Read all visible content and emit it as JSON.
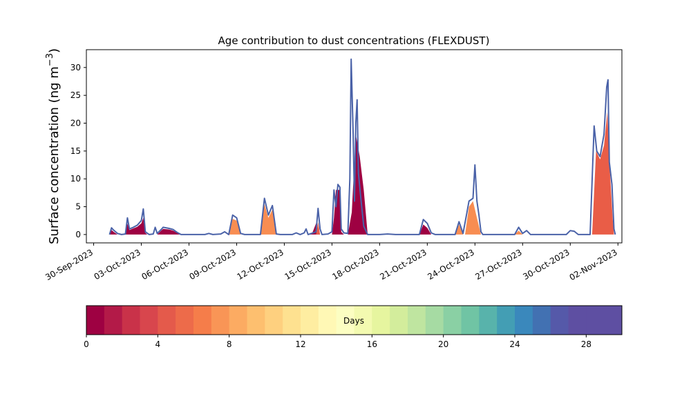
{
  "chart_data": {
    "type": "area",
    "title": "Age contribution to dust concentrations (FLEXDUST)",
    "ylabel_main": "Surface concentration (ng m",
    "ylabel_sup": "−3",
    "ylabel_close": ")",
    "xlabel": "",
    "ylim": [
      -1.5,
      33.2
    ],
    "yticks": [
      0,
      5,
      10,
      15,
      20,
      25,
      30
    ],
    "xlim": [
      "2023-09-29T13:00",
      "2023-11-02T06:00"
    ],
    "xticks": [
      "2023-09-30",
      "2023-10-03",
      "2023-10-06",
      "2023-10-09",
      "2023-10-12",
      "2023-10-15",
      "2023-10-18",
      "2023-10-21",
      "2023-10-24",
      "2023-10-27",
      "2023-10-30",
      "2023-11-02"
    ],
    "xtick_labels": [
      "30-Sep-2023",
      "03-Oct-2023",
      "06-Oct-2023",
      "09-Oct-2023",
      "12-Oct-2023",
      "15-Oct-2023",
      "18-Oct-2023",
      "21-Oct-2023",
      "24-Oct-2023",
      "27-Oct-2023",
      "30-Oct-2023",
      "02-Nov-2023"
    ],
    "line_color": "#4a62a8",
    "series": [
      {
        "age_bin": "0-1 days",
        "color": "#9e0142",
        "points": [
          [
            "2023-10-01T00:00",
            0
          ],
          [
            "2023-10-01T03:00",
            0.8
          ],
          [
            "2023-10-01T06:00",
            0.5
          ],
          [
            "2023-10-01T12:00",
            0
          ],
          [
            "2023-10-02T00:00",
            0
          ],
          [
            "2023-10-02T03:00",
            2.0
          ],
          [
            "2023-10-02T06:00",
            0.8
          ],
          [
            "2023-10-02T12:00",
            1.1
          ],
          [
            "2023-10-02T18:00",
            1.4
          ],
          [
            "2023-10-03T00:00",
            2.0
          ],
          [
            "2023-10-03T03:00",
            3.0
          ],
          [
            "2023-10-03T06:00",
            0.3
          ],
          [
            "2023-10-03T09:00",
            0
          ],
          [
            "2023-10-04T00:00",
            0
          ],
          [
            "2023-10-04T06:00",
            0.7
          ],
          [
            "2023-10-04T09:00",
            1.0
          ],
          [
            "2023-10-04T18:00",
            0.9
          ],
          [
            "2023-10-05T00:00",
            0.7
          ],
          [
            "2023-10-05T06:00",
            0.3
          ],
          [
            "2023-10-05T12:00",
            0
          ],
          [
            "2023-10-13T12:00",
            0
          ],
          [
            "2023-10-13T18:00",
            0.2
          ],
          [
            "2023-10-14T00:00",
            2.0
          ],
          [
            "2023-10-14T03:00",
            0.3
          ],
          [
            "2023-10-14T06:00",
            0
          ],
          [
            "2023-10-15T00:00",
            0
          ],
          [
            "2023-10-15T03:00",
            3.0
          ],
          [
            "2023-10-15T06:00",
            8.0
          ],
          [
            "2023-10-15T12:00",
            8.0
          ],
          [
            "2023-10-15T14:00",
            0.5
          ],
          [
            "2023-10-15T18:00",
            0
          ],
          [
            "2023-10-16T00:00",
            0
          ],
          [
            "2023-10-16T06:00",
            4.0
          ],
          [
            "2023-10-16T12:00",
            18.0
          ],
          [
            "2023-10-16T18:00",
            14.0
          ],
          [
            "2023-10-17T00:00",
            8.0
          ],
          [
            "2023-10-17T06:00",
            0
          ],
          [
            "2023-10-20T12:00",
            0
          ],
          [
            "2023-10-20T18:00",
            1.8
          ],
          [
            "2023-10-21T00:00",
            1.2
          ],
          [
            "2023-10-21T06:00",
            0
          ]
        ]
      },
      {
        "age_bin": "4-6 days",
        "color": "#e95d47",
        "points": [
          [
            "2023-10-14T00:00",
            0
          ],
          [
            "2023-10-14T03:00",
            2.2
          ],
          [
            "2023-10-14T06:00",
            0
          ],
          [
            "2023-10-31T09:00",
            0
          ],
          [
            "2023-10-31T15:00",
            15.0
          ],
          [
            "2023-10-31T21:00",
            13.5
          ],
          [
            "2023-11-01T03:00",
            16.0
          ],
          [
            "2023-11-01T08:00",
            22.0
          ],
          [
            "2023-11-01T12:00",
            11.0
          ],
          [
            "2023-11-01T16:00",
            3.0
          ],
          [
            "2023-11-01T18:00",
            0
          ]
        ]
      },
      {
        "age_bin": "7-9 days",
        "color": "#f88d52",
        "points": [
          [
            "2023-10-08T12:00",
            0
          ],
          [
            "2023-10-08T18:00",
            2.8
          ],
          [
            "2023-10-09T00:00",
            2.5
          ],
          [
            "2023-10-09T06:00",
            0
          ],
          [
            "2023-10-10T12:00",
            0
          ],
          [
            "2023-10-10T18:00",
            5.5
          ],
          [
            "2023-10-11T00:00",
            3.0
          ],
          [
            "2023-10-11T06:00",
            4.5
          ],
          [
            "2023-10-11T12:00",
            0
          ],
          [
            "2023-10-22T18:00",
            0
          ],
          [
            "2023-10-23T00:00",
            1.8
          ],
          [
            "2023-10-23T06:00",
            0
          ],
          [
            "2023-10-23T09:00",
            0
          ],
          [
            "2023-10-23T15:00",
            5.0
          ],
          [
            "2023-10-23T21:00",
            6.0
          ],
          [
            "2023-10-24T03:00",
            3.0
          ],
          [
            "2023-10-24T09:00",
            0
          ],
          [
            "2023-10-26T12:00",
            0
          ],
          [
            "2023-10-26T18:00",
            0.7
          ],
          [
            "2023-10-27T00:00",
            0
          ]
        ]
      }
    ],
    "total_line": [
      [
        "2023-10-01T00:00",
        0
      ],
      [
        "2023-10-01T03:00",
        1.2
      ],
      [
        "2023-10-01T06:00",
        0.8
      ],
      [
        "2023-10-01T12:00",
        0.2
      ],
      [
        "2023-10-01T18:00",
        0
      ],
      [
        "2023-10-02T00:00",
        0.1
      ],
      [
        "2023-10-02T03:00",
        3.0
      ],
      [
        "2023-10-02T06:00",
        1.0
      ],
      [
        "2023-10-02T12:00",
        1.3
      ],
      [
        "2023-10-02T18:00",
        1.7
      ],
      [
        "2023-10-03T00:00",
        2.5
      ],
      [
        "2023-10-03T03:00",
        4.6
      ],
      [
        "2023-10-03T06:00",
        0.5
      ],
      [
        "2023-10-03T12:00",
        0
      ],
      [
        "2023-10-03T18:00",
        0.1
      ],
      [
        "2023-10-03T21:00",
        1.3
      ],
      [
        "2023-10-04T00:00",
        0.2
      ],
      [
        "2023-10-04T06:00",
        0.9
      ],
      [
        "2023-10-04T09:00",
        1.3
      ],
      [
        "2023-10-04T18:00",
        1.1
      ],
      [
        "2023-10-05T00:00",
        0.9
      ],
      [
        "2023-10-05T06:00",
        0.4
      ],
      [
        "2023-10-05T12:00",
        0
      ],
      [
        "2023-10-07T00:00",
        0
      ],
      [
        "2023-10-07T06:00",
        0.2
      ],
      [
        "2023-10-07T12:00",
        0
      ],
      [
        "2023-10-08T00:00",
        0.1
      ],
      [
        "2023-10-08T06:00",
        0.5
      ],
      [
        "2023-10-08T12:00",
        0
      ],
      [
        "2023-10-08T18:00",
        3.5
      ],
      [
        "2023-10-09T00:00",
        3.0
      ],
      [
        "2023-10-09T06:00",
        0.2
      ],
      [
        "2023-10-09T12:00",
        0
      ],
      [
        "2023-10-10T12:00",
        0
      ],
      [
        "2023-10-10T18:00",
        6.5
      ],
      [
        "2023-10-11T00:00",
        3.5
      ],
      [
        "2023-10-11T06:00",
        5.2
      ],
      [
        "2023-10-11T12:00",
        0.1
      ],
      [
        "2023-10-11T18:00",
        0
      ],
      [
        "2023-10-12T12:00",
        0
      ],
      [
        "2023-10-12T18:00",
        0.3
      ],
      [
        "2023-10-13T00:00",
        0
      ],
      [
        "2023-10-13T06:00",
        0.3
      ],
      [
        "2023-10-13T09:00",
        1.0
      ],
      [
        "2023-10-13T12:00",
        0
      ],
      [
        "2023-10-14T00:00",
        0.5
      ],
      [
        "2023-10-14T03:00",
        4.7
      ],
      [
        "2023-10-14T06:00",
        1.0
      ],
      [
        "2023-10-14T09:00",
        0
      ],
      [
        "2023-10-14T18:00",
        0.1
      ],
      [
        "2023-10-15T00:00",
        0.5
      ],
      [
        "2023-10-15T03:00",
        8.0
      ],
      [
        "2023-10-15T06:00",
        5.0
      ],
      [
        "2023-10-15T09:00",
        9.0
      ],
      [
        "2023-10-15T12:00",
        8.5
      ],
      [
        "2023-10-15T14:00",
        1.0
      ],
      [
        "2023-10-15T18:00",
        0.3
      ],
      [
        "2023-10-16T00:00",
        0.2
      ],
      [
        "2023-10-16T03:00",
        10.0
      ],
      [
        "2023-10-16T05:00",
        31.5
      ],
      [
        "2023-10-16T08:00",
        18.0
      ],
      [
        "2023-10-16T10:00",
        6.0
      ],
      [
        "2023-10-16T12:00",
        20.0
      ],
      [
        "2023-10-16T14:00",
        24.2
      ],
      [
        "2023-10-16T16:00",
        11.0
      ],
      [
        "2023-10-16T20:00",
        6.0
      ],
      [
        "2023-10-17T00:00",
        1.5
      ],
      [
        "2023-10-17T06:00",
        0
      ],
      [
        "2023-10-18T00:00",
        0
      ],
      [
        "2023-10-18T12:00",
        0.1
      ],
      [
        "2023-10-19T00:00",
        0
      ],
      [
        "2023-10-20T12:00",
        0
      ],
      [
        "2023-10-20T18:00",
        2.7
      ],
      [
        "2023-10-21T00:00",
        2.0
      ],
      [
        "2023-10-21T06:00",
        0.3
      ],
      [
        "2023-10-21T12:00",
        0
      ],
      [
        "2023-10-22T18:00",
        0
      ],
      [
        "2023-10-23T00:00",
        2.3
      ],
      [
        "2023-10-23T06:00",
        0.2
      ],
      [
        "2023-10-23T12:00",
        4.0
      ],
      [
        "2023-10-23T15:00",
        6.0
      ],
      [
        "2023-10-23T21:00",
        6.5
      ],
      [
        "2023-10-24T00:00",
        12.5
      ],
      [
        "2023-10-24T03:00",
        6.0
      ],
      [
        "2023-10-24T06:00",
        3.5
      ],
      [
        "2023-10-24T09:00",
        0.5
      ],
      [
        "2023-10-24T12:00",
        0
      ],
      [
        "2023-10-26T12:00",
        0
      ],
      [
        "2023-10-26T18:00",
        1.3
      ],
      [
        "2023-10-27T00:00",
        0.2
      ],
      [
        "2023-10-27T06:00",
        0.7
      ],
      [
        "2023-10-27T12:00",
        0
      ],
      [
        "2023-10-29T18:00",
        0
      ],
      [
        "2023-10-30T00:00",
        0.7
      ],
      [
        "2023-10-30T06:00",
        0.6
      ],
      [
        "2023-10-30T12:00",
        0
      ],
      [
        "2023-10-31T06:00",
        0
      ],
      [
        "2023-10-31T12:00",
        19.5
      ],
      [
        "2023-10-31T16:00",
        15.0
      ],
      [
        "2023-10-31T21:00",
        14.0
      ],
      [
        "2023-11-01T03:00",
        18.0
      ],
      [
        "2023-11-01T07:00",
        26.5
      ],
      [
        "2023-11-01T09:00",
        27.8
      ],
      [
        "2023-11-01T11:00",
        13.0
      ],
      [
        "2023-11-01T15:00",
        9.0
      ],
      [
        "2023-11-01T18:00",
        1.0
      ],
      [
        "2023-11-01T20:00",
        0
      ]
    ]
  },
  "colorbar": {
    "label": "Days",
    "min": 0,
    "max": 30,
    "ticks": [
      0,
      4,
      8,
      12,
      16,
      20,
      24,
      28
    ],
    "tick_labels": [
      "0",
      "4",
      "8",
      "12",
      "16",
      "20",
      "24",
      "28"
    ],
    "colors": [
      "#9e0142",
      "#b31a48",
      "#c93249",
      "#d8464d",
      "#e45a4b",
      "#ed6b4a",
      "#f57d4a",
      "#f99556",
      "#fcab62",
      "#fdbf6f",
      "#fed07f",
      "#fee190",
      "#feeda1",
      "#fff8b5",
      "#fcfec2",
      "#f3fab0",
      "#e6f59f",
      "#d3ed9c",
      "#bfe5a0",
      "#a6dba3",
      "#8ad0a4",
      "#70c4a4",
      "#58b3ab",
      "#439eb4",
      "#3a88bc",
      "#4271b2",
      "#5559a9",
      "#5e4fa2",
      "#5e4fa2",
      "#5e4fa2"
    ]
  }
}
